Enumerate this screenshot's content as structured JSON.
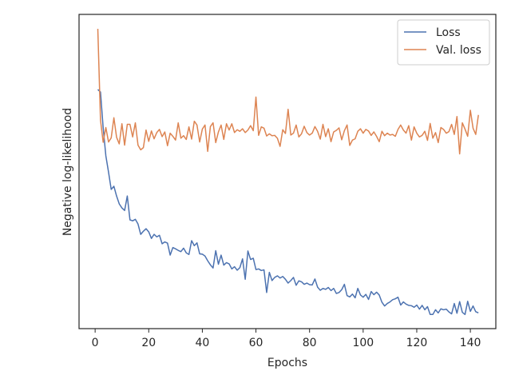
{
  "chart_data": {
    "type": "line",
    "xlabel": "Epochs",
    "ylabel": "Negative log-likelihood",
    "xlim": [
      -6,
      149.5
    ],
    "xticks": [
      0,
      20,
      40,
      60,
      80,
      100,
      120,
      140
    ],
    "ylim": [
      0,
      10
    ],
    "yticks": [],
    "legend": "upper right",
    "grid": false,
    "x": [
      1,
      2,
      3,
      4,
      5,
      6,
      7,
      8,
      9,
      10,
      11,
      12,
      13,
      14,
      15,
      16,
      17,
      18,
      19,
      20,
      21,
      22,
      23,
      24,
      25,
      26,
      27,
      28,
      29,
      30,
      31,
      32,
      33,
      34,
      35,
      36,
      37,
      38,
      39,
      40,
      41,
      42,
      43,
      44,
      45,
      46,
      47,
      48,
      49,
      50,
      51,
      52,
      53,
      54,
      55,
      56,
      57,
      58,
      59,
      60,
      61,
      62,
      63,
      64,
      65,
      66,
      67,
      68,
      69,
      70,
      71,
      72,
      73,
      74,
      75,
      76,
      77,
      78,
      79,
      80,
      81,
      82,
      83,
      84,
      85,
      86,
      87,
      88,
      89,
      90,
      91,
      92,
      93,
      94,
      95,
      96,
      97,
      98,
      99,
      100,
      101,
      102,
      103,
      104,
      105,
      106,
      107,
      108,
      109,
      110,
      111,
      112,
      113,
      114,
      115,
      116,
      117,
      118,
      119,
      120,
      121,
      122,
      123,
      124,
      125,
      126,
      127,
      128,
      129,
      130,
      131,
      132,
      133,
      134,
      135,
      136,
      137,
      138,
      139,
      140,
      141,
      142,
      143
    ],
    "series": [
      {
        "name": "Loss",
        "color": "#4c72b0",
        "values": [
          7.61,
          7.53,
          6.39,
          5.5,
          4.98,
          4.43,
          4.53,
          4.22,
          3.97,
          3.84,
          3.76,
          4.22,
          3.46,
          3.43,
          3.48,
          3.33,
          3.0,
          3.1,
          3.18,
          3.08,
          2.87,
          3.0,
          2.92,
          2.97,
          2.7,
          2.76,
          2.72,
          2.34,
          2.58,
          2.54,
          2.49,
          2.45,
          2.56,
          2.41,
          2.36,
          2.8,
          2.64,
          2.73,
          2.38,
          2.37,
          2.31,
          2.16,
          2.03,
          1.93,
          2.48,
          2.05,
          2.34,
          2.02,
          2.1,
          2.06,
          1.9,
          1.97,
          1.86,
          1.94,
          2.22,
          1.57,
          2.47,
          2.2,
          2.24,
          1.88,
          1.9,
          1.85,
          1.87,
          1.15,
          1.79,
          1.53,
          1.63,
          1.68,
          1.61,
          1.66,
          1.57,
          1.45,
          1.53,
          1.63,
          1.38,
          1.52,
          1.49,
          1.41,
          1.45,
          1.4,
          1.39,
          1.58,
          1.32,
          1.22,
          1.28,
          1.25,
          1.31,
          1.21,
          1.28,
          1.12,
          1.15,
          1.24,
          1.41,
          1.05,
          1.01,
          1.1,
          0.98,
          1.28,
          1.07,
          1.0,
          1.09,
          0.93,
          1.18,
          1.08,
          1.16,
          1.07,
          0.84,
          0.72,
          0.8,
          0.85,
          0.92,
          0.95,
          1.0,
          0.75,
          0.85,
          0.78,
          0.74,
          0.73,
          0.68,
          0.75,
          0.62,
          0.74,
          0.6,
          0.7,
          0.45,
          0.45,
          0.6,
          0.5,
          0.63,
          0.6,
          0.62,
          0.53,
          0.47,
          0.8,
          0.49,
          0.86,
          0.52,
          0.45,
          0.87,
          0.55,
          0.72,
          0.54,
          0.5
        ]
      },
      {
        "name": "Val. loss",
        "color": "#dd8452",
        "values": [
          9.54,
          6.64,
          5.93,
          6.4,
          5.94,
          6.07,
          6.71,
          6.09,
          5.88,
          6.52,
          5.84,
          6.5,
          6.5,
          6.1,
          6.55,
          5.84,
          5.69,
          5.76,
          6.32,
          5.96,
          6.29,
          6.04,
          6.24,
          6.34,
          6.11,
          6.26,
          5.82,
          6.22,
          6.12,
          6.0,
          6.55,
          6.06,
          6.14,
          6.02,
          6.42,
          6.03,
          6.6,
          6.48,
          5.94,
          6.35,
          6.48,
          5.64,
          6.43,
          6.55,
          5.92,
          6.26,
          6.48,
          6.02,
          6.52,
          6.32,
          6.52,
          6.24,
          6.33,
          6.28,
          6.36,
          6.24,
          6.32,
          6.46,
          6.3,
          7.37,
          6.15,
          6.42,
          6.38,
          6.13,
          6.2,
          6.14,
          6.15,
          6.06,
          5.8,
          6.33,
          6.21,
          6.98,
          6.16,
          6.22,
          6.48,
          6.1,
          6.2,
          6.44,
          6.24,
          6.16,
          6.22,
          6.43,
          6.28,
          6.03,
          6.5,
          6.11,
          6.36,
          5.95,
          6.26,
          6.31,
          6.39,
          6.01,
          6.3,
          6.48,
          5.83,
          6.0,
          6.04,
          6.28,
          6.36,
          6.22,
          6.34,
          6.29,
          6.15,
          6.26,
          6.12,
          5.95,
          6.28,
          6.14,
          6.22,
          6.16,
          6.18,
          6.12,
          6.34,
          6.48,
          6.32,
          6.22,
          6.46,
          6.0,
          6.42,
          6.22,
          6.1,
          6.15,
          6.28,
          5.99,
          6.53,
          6.06,
          6.24,
          5.92,
          6.4,
          6.34,
          6.22,
          6.27,
          6.5,
          6.18,
          6.75,
          5.56,
          6.55,
          6.35,
          6.12,
          6.95,
          6.38,
          6.18,
          6.8
        ]
      }
    ]
  }
}
